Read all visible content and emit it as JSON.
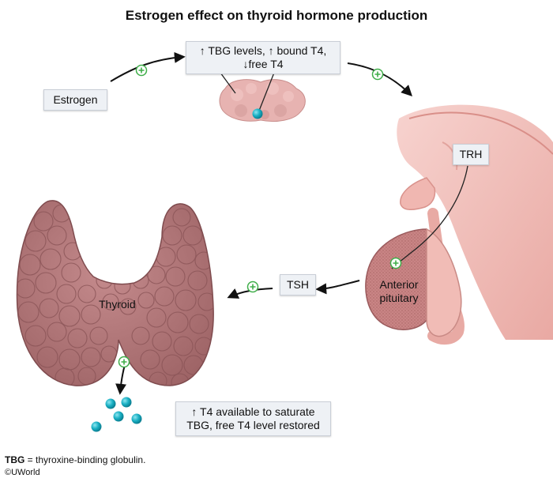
{
  "title": "Estrogen effect on thyroid hormone production",
  "boxes": {
    "estrogen": "Estrogen",
    "tbg_line1": "↑ TBG levels, ↑ bound T4,",
    "tbg_line2": "↓free T4",
    "trh": "TRH",
    "tsh": "TSH",
    "result_line1": "↑ T4 available to saturate",
    "result_line2": "TBG, free T4 level restored"
  },
  "labels": {
    "thyroid": "Thyroid",
    "pituitary_line1": "Anterior",
    "pituitary_line2": "pituitary"
  },
  "footer": {
    "abbr": "TBG",
    "definition": " = thyroxine-binding globulin.",
    "copyright": "©UWorld"
  },
  "colors": {
    "thyroid_fill": "#b57a7c",
    "thyroid_stroke": "#8a5457",
    "brain_fill": "#f2c2bd",
    "pituitary_fill": "#c98585",
    "plus_green": "#3fae49",
    "t4_teal": "#1ab0c4"
  }
}
